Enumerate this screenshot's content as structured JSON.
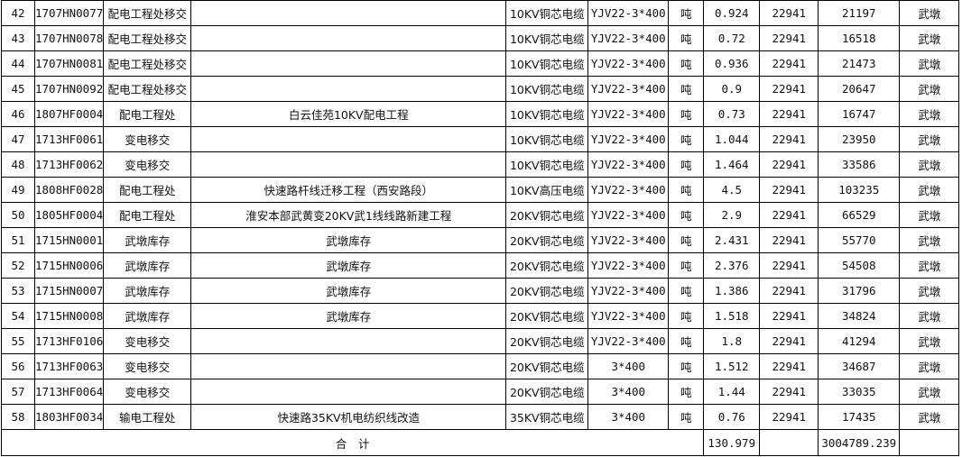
{
  "rows": [
    [
      "42",
      "1707HN0077",
      "配电工程处移交",
      "",
      "10KV铜芯电缆",
      "YJV22-3*400",
      "吨",
      "0.924",
      "22941",
      "21197",
      "武墩"
    ],
    [
      "43",
      "1707HN0078",
      "配电工程处移交",
      "",
      "10KV铜芯电缆",
      "YJV22-3*400",
      "吨",
      "0.72",
      "22941",
      "16518",
      "武墩"
    ],
    [
      "44",
      "1707HN0081",
      "配电工程处移交",
      "",
      "10KV铜芯电缆",
      "YJV22-3*400",
      "吨",
      "0.936",
      "22941",
      "21473",
      "武墩"
    ],
    [
      "45",
      "1707HN0092",
      "配电工程处移交",
      "",
      "10KV铜芯电缆",
      "YJV22-3*400",
      "吨",
      "0.9",
      "22941",
      "20647",
      "武墩"
    ],
    [
      "46",
      "1807HF0004",
      "配电工程处",
      "白云佳苑10KV配电工程",
      "10KV铜芯电缆",
      "YJV22-3*400",
      "吨",
      "0.73",
      "22941",
      "16747",
      "武墩"
    ],
    [
      "47",
      "1713HF0061",
      "变电移交",
      "",
      "10KV铜芯电缆",
      "YJV22-3*400",
      "吨",
      "1.044",
      "22941",
      "23950",
      "武墩"
    ],
    [
      "48",
      "1713HF0062",
      "变电移交",
      "",
      "10KV铜芯电缆",
      "YJV22-3*400",
      "吨",
      "1.464",
      "22941",
      "33586",
      "武墩"
    ],
    [
      "49",
      "1808HF0028",
      "配电工程处",
      "快速路杆线迁移工程（西安路段）",
      "10KV高压电缆",
      "YJV22-3*400",
      "吨",
      "4.5",
      "22941",
      "103235",
      "武墩"
    ],
    [
      "50",
      "1805HF0004",
      "配电工程处",
      "淮安本部武黄变20KV武1线线路新建工程",
      "20KV铜芯电缆",
      "YJV22-3*400",
      "吨",
      "2.9",
      "22941",
      "66529",
      "武墩"
    ],
    [
      "51",
      "1715HN0001",
      "武墩库存",
      "武墩库存",
      "20KV铜芯电缆",
      "YJV22-3*400",
      "吨",
      "2.431",
      "22941",
      "55770",
      "武墩"
    ],
    [
      "52",
      "1715HN0006",
      "武墩库存",
      "武墩库存",
      "20KV铜芯电缆",
      "YJV22-3*400",
      "吨",
      "2.376",
      "22941",
      "54508",
      "武墩"
    ],
    [
      "53",
      "1715HN0007",
      "武墩库存",
      "武墩库存",
      "20KV铜芯电缆",
      "YJV22-3*400",
      "吨",
      "1.386",
      "22941",
      "31796",
      "武墩"
    ],
    [
      "54",
      "1715HN0008",
      "武墩库存",
      "武墩库存",
      "20KV铜芯电缆",
      "YJV22-3*400",
      "吨",
      "1.518",
      "22941",
      "34824",
      "武墩"
    ],
    [
      "55",
      "1713HF0106",
      "变电移交",
      "",
      "20KV铜芯电缆",
      "YJV22-3*400",
      "吨",
      "1.8",
      "22941",
      "41294",
      "武墩"
    ],
    [
      "56",
      "1713HF0063",
      "变电移交",
      "",
      "20KV铜芯电缆",
      "3*400",
      "吨",
      "1.512",
      "22941",
      "34687",
      "武墩"
    ],
    [
      "57",
      "1713HF0064",
      "变电移交",
      "",
      "20KV铜芯电缆",
      "3*400",
      "吨",
      "1.44",
      "22941",
      "33035",
      "武墩"
    ],
    [
      "58",
      "1803HF0034",
      "输电工程处",
      "快速路35KV机电纺织线改造",
      "35KV铜芯电缆",
      "3*400",
      "吨",
      "0.76",
      "22941",
      "17435",
      "武墩"
    ]
  ],
  "total": {
    "label": "合　计",
    "quantity": "130.979",
    "price": "",
    "amount": "3004789.239",
    "location": ""
  }
}
